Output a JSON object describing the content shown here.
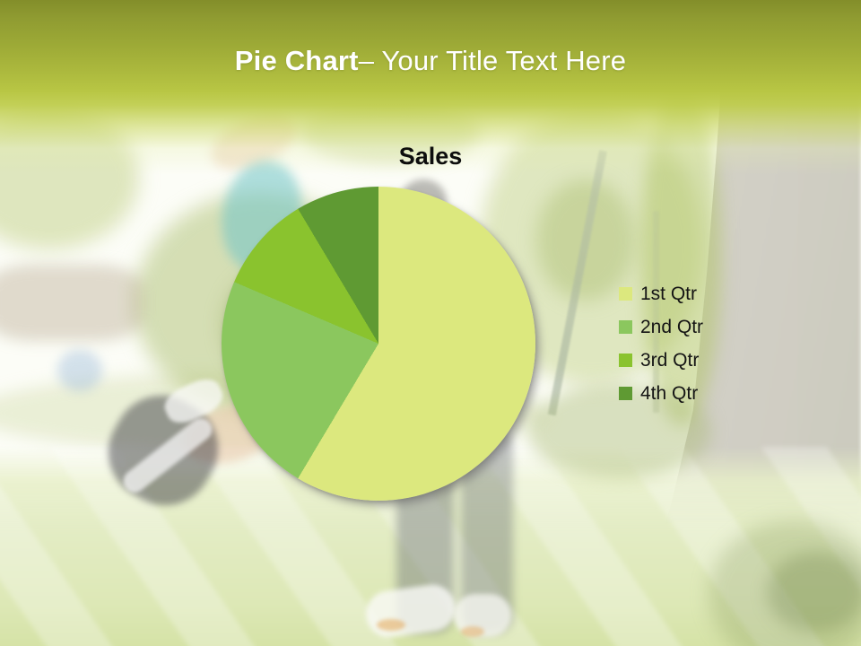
{
  "banner": {
    "title_emphasis": "Pie Chart",
    "title_rest": "– Your Title Text Here"
  },
  "chart_data": {
    "type": "pie",
    "title": "Sales",
    "labels": [
      "1st Qtr",
      "2nd Qtr",
      "3rd Qtr",
      "4th Qtr"
    ],
    "values": [
      8.2,
      3.2,
      1.4,
      1.2
    ],
    "colors": [
      "#DCE87E",
      "#8BC75E",
      "#8AC32E",
      "#5F9A33"
    ],
    "start_angle_deg": 0,
    "direction": "clockwise",
    "legend_position": "right",
    "has_gridlines": false
  },
  "theme": {
    "banner_gradient_top": "#838E2A",
    "banner_gradient_bottom": "#B8C644",
    "title_text_color": "#FFFFFF",
    "chart_title_color": "#0D0D0D",
    "legend_text_color": "#141414"
  }
}
